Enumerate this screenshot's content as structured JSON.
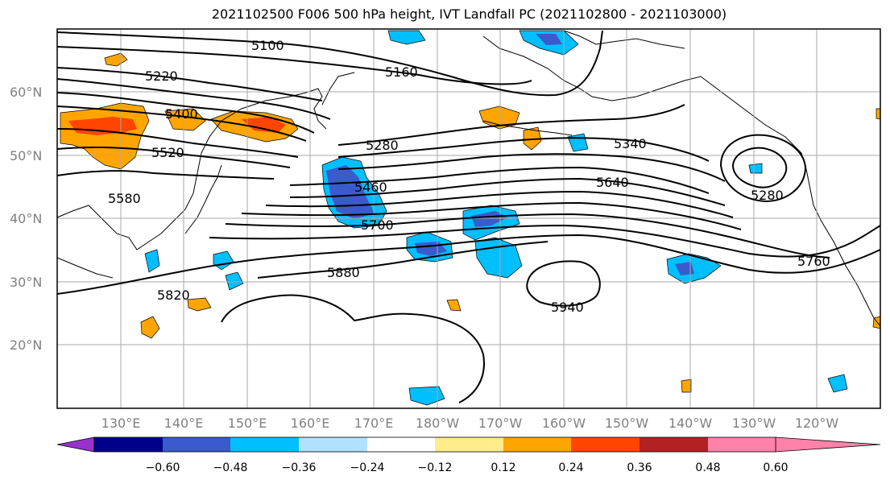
{
  "title": "2021102500 F006 500 hPa height, IVT Landfall PC (2021102800 - 2021103000)",
  "lat_labels": [
    "60°N",
    "50°N",
    "40°N",
    "30°N",
    "20°N"
  ],
  "lon_labels": [
    "130°E",
    "140°E",
    "150°E",
    "160°E",
    "170°E",
    "180°W",
    "170°W",
    "160°W",
    "150°W",
    "140°W",
    "130°W",
    "120°W"
  ],
  "contour_labels": [
    "5100",
    "5160",
    "5220",
    "5400",
    "5520",
    "5580",
    "5280",
    "5340",
    "5460",
    "5640",
    "5280",
    "5700",
    "5880",
    "5820",
    "5940",
    "5760"
  ],
  "colorbar": {
    "colors": [
      "#9932CC",
      "#00008B",
      "#3A5BCB",
      "#00BFFF",
      "#B0E2FF",
      "#FFFFFF",
      "#FFEC8B",
      "#FFA500",
      "#FF4500",
      "#B22222",
      "#FF82AB"
    ],
    "ticks": [
      "−0.60",
      "−0.48",
      "−0.36",
      "−0.24",
      "−0.12",
      "0.12",
      "0.24",
      "0.36",
      "0.48",
      "0.60"
    ]
  }
}
